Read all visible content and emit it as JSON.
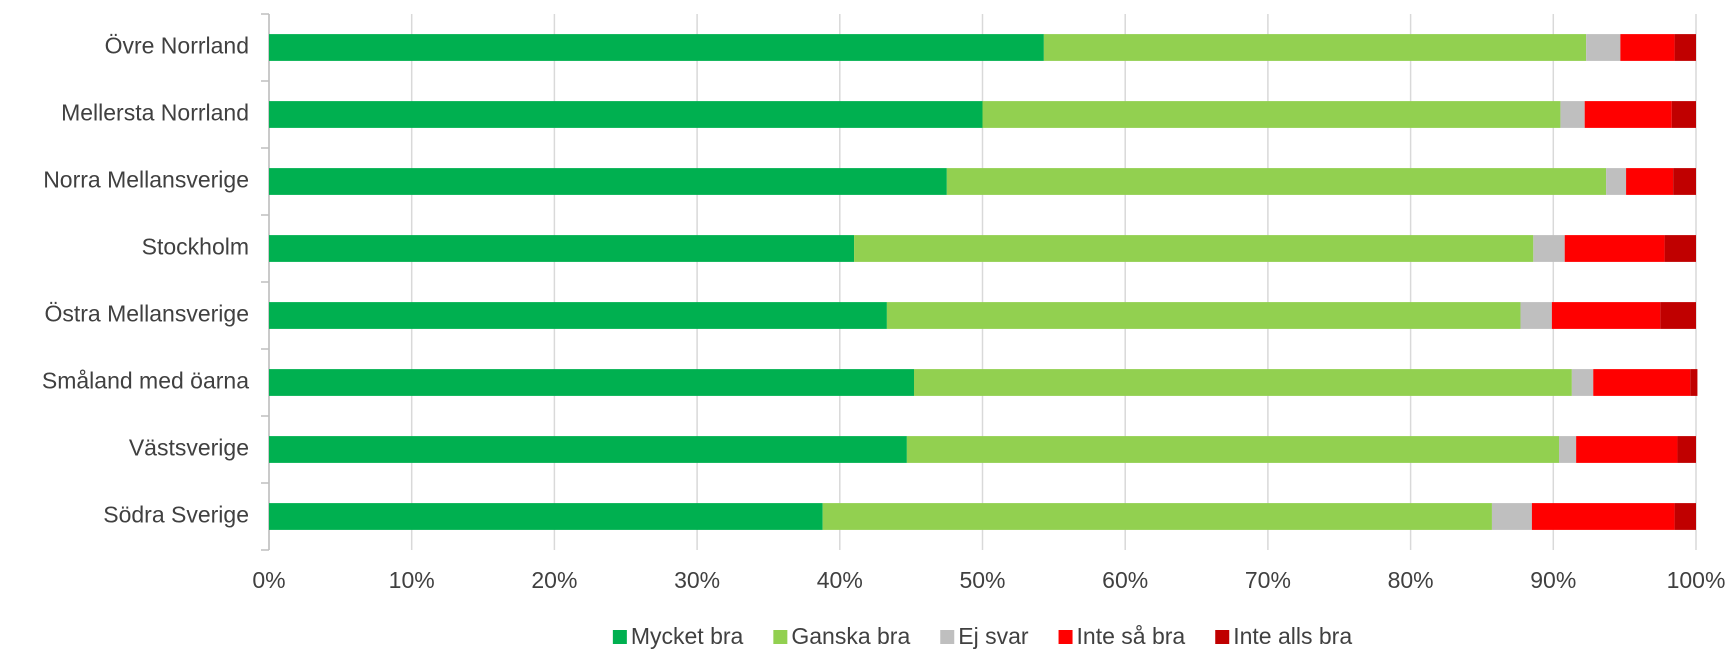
{
  "chart_data": {
    "type": "stacked-barh",
    "categories": [
      "Övre Norrland",
      "Mellersta Norrland",
      "Norra Mellansverige",
      "Stockholm",
      "Östra Mellansverige",
      "Småland med öarna",
      "Västsverige",
      "Södra Sverige"
    ],
    "series": [
      {
        "name": "Mycket bra",
        "color": "#00b050",
        "values": [
          54.3,
          50.0,
          47.5,
          41.0,
          43.3,
          45.2,
          44.7,
          38.8
        ]
      },
      {
        "name": "Ganska bra",
        "color": "#92d050",
        "values": [
          38.0,
          40.5,
          46.2,
          47.6,
          44.4,
          46.1,
          45.7,
          46.9
        ]
      },
      {
        "name": "Ej svar",
        "color": "#bfbfbf",
        "values": [
          2.4,
          1.7,
          1.4,
          2.2,
          2.2,
          1.5,
          1.2,
          2.8
        ]
      },
      {
        "name": "Inte så bra",
        "color": "#ff0000",
        "values": [
          3.8,
          6.1,
          3.3,
          7.0,
          7.6,
          6.8,
          7.1,
          10.0
        ]
      },
      {
        "name": "Inte alls bra",
        "color": "#c00000",
        "values": [
          1.5,
          1.7,
          1.6,
          2.2,
          2.5,
          0.5,
          1.3,
          1.5
        ]
      }
    ],
    "xlim": [
      0,
      100
    ],
    "xticks": [
      {
        "value": 0,
        "label": "0%"
      },
      {
        "value": 10,
        "label": "10%"
      },
      {
        "value": 20,
        "label": "20%"
      },
      {
        "value": 30,
        "label": "30%"
      },
      {
        "value": 40,
        "label": "40%"
      },
      {
        "value": 50,
        "label": "50%"
      },
      {
        "value": 60,
        "label": "60%"
      },
      {
        "value": 70,
        "label": "70%"
      },
      {
        "value": 80,
        "label": "80%"
      },
      {
        "value": 90,
        "label": "90%"
      },
      {
        "value": 100,
        "label": "100%"
      }
    ],
    "grid": true,
    "legend": "bottom"
  }
}
